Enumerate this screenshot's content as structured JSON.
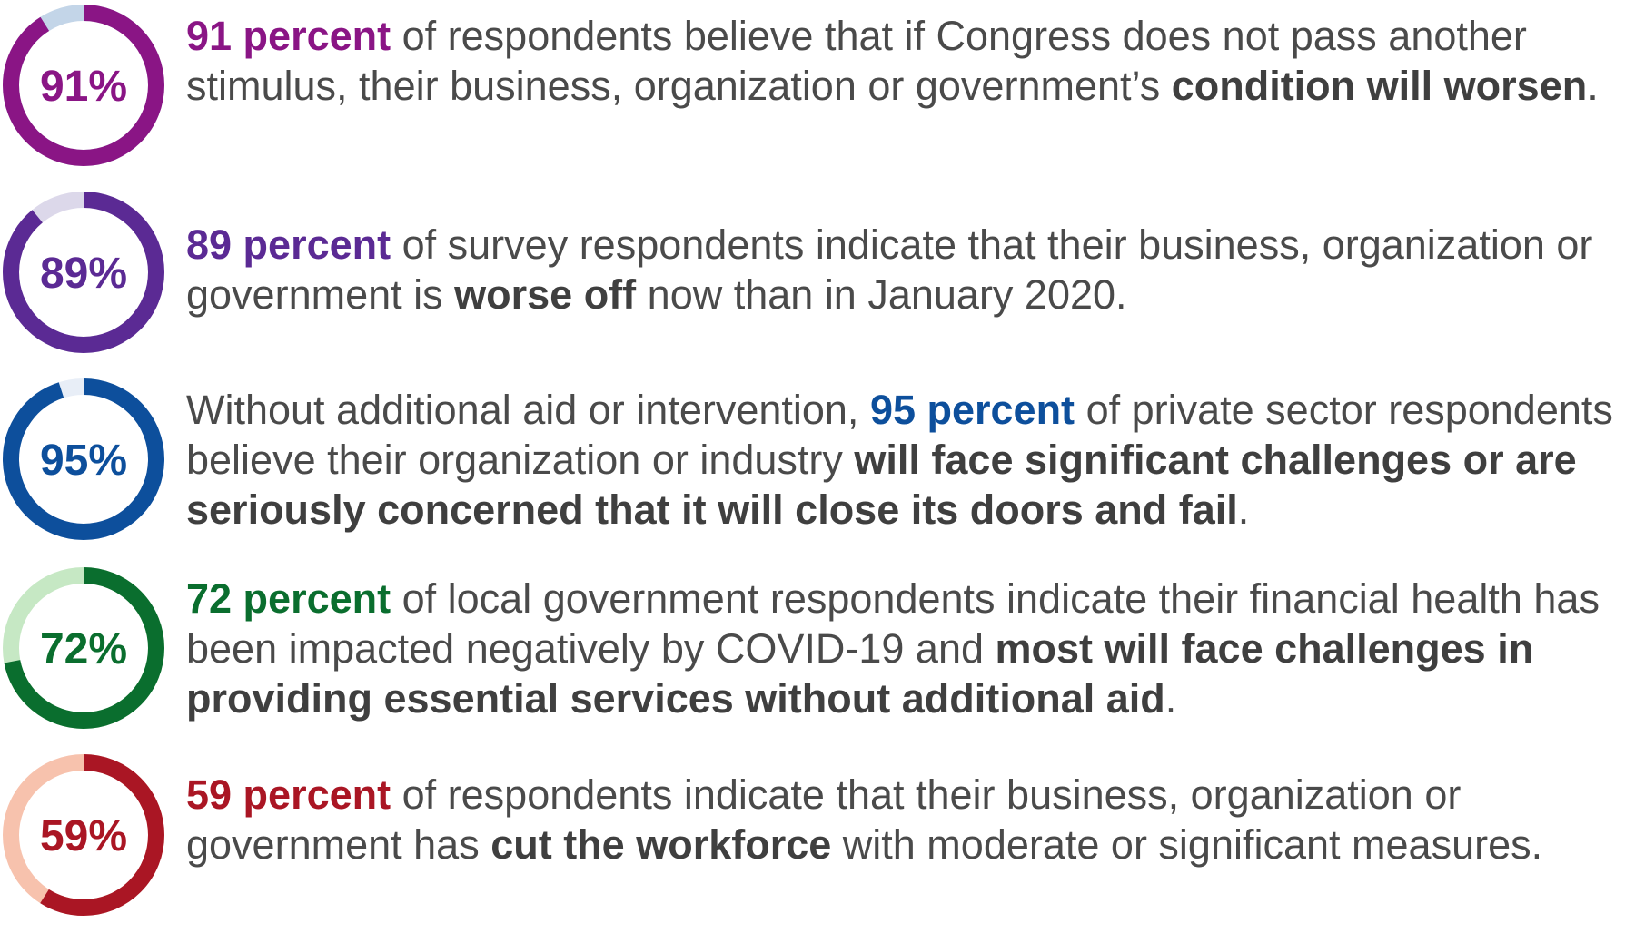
{
  "stats": [
    {
      "percent": 91,
      "label": "91%",
      "color": "#8a1585",
      "remainder_color": "#c3d5e8",
      "text": {
        "hl": "91 percent",
        "a": " of respondents believe that if Congress does not pass another stimulus, their business, organization or government’s ",
        "b1": "condition will worsen",
        "c": "."
      }
    },
    {
      "percent": 89,
      "label": "89%",
      "color": "#5b2a94",
      "remainder_color": "#dcd8ea",
      "text": {
        "hl": "89 percent",
        "a": " of survey respondents indicate that their business, organization or government is ",
        "b1": "worse off",
        "c": " now than in January 2020."
      }
    },
    {
      "percent": 95,
      "label": "95%",
      "color": "#0d4f9c",
      "remainder_color": "#e8eef7",
      "text": {
        "pre": "Without additional aid or intervention, ",
        "hl": "95 percent",
        "a": " of private sector respondents believe their organization or industry ",
        "b1": "will face significant challenges or are seriously concerned that it will close its doors and fail",
        "c": "."
      }
    },
    {
      "percent": 72,
      "label": "72%",
      "color": "#0a6e2e",
      "remainder_color": "#c6e8c4",
      "text": {
        "hl": "72 percent",
        "a": " of local government respondents indicate their financial health has been impacted negatively by COVID-19 and ",
        "b1": "most will face challenges in providing essential services without additional aid",
        "c": "."
      }
    },
    {
      "percent": 59,
      "label": "59%",
      "color": "#aa1624",
      "remainder_color": "#f7c2ad",
      "text": {
        "hl": "59 percent",
        "a": " of respondents indicate that their business, organization or government has ",
        "b1": "cut the workforce",
        "c": " with moderate or significant measures."
      }
    }
  ],
  "chart_data": {
    "type": "pie",
    "variant": "donut",
    "categories": [
      "91%",
      "89%",
      "95%",
      "72%",
      "59%"
    ],
    "values": [
      91,
      89,
      95,
      72,
      59
    ],
    "title": "",
    "xlabel": "",
    "ylabel": ""
  }
}
